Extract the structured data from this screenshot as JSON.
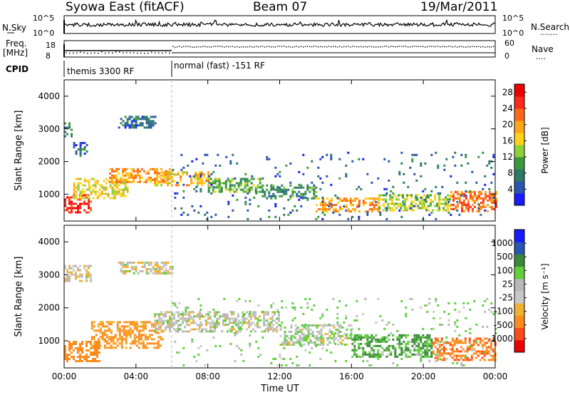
{
  "header": {
    "station": "Syowa East (fitACF)",
    "beam": "Beam 07",
    "date": "19/Mar/2011"
  },
  "side_labels": {
    "nsky": "N.Sky",
    "nsearch": "N.Search",
    "nsearch_dots": "·······",
    "freq": "Freq.",
    "freq_unit": "[MHz]",
    "nave": "Nave",
    "nave_dots": "····",
    "cpid": "CPID",
    "sky_top": "10^5",
    "sky_bot": "10^0",
    "search_top": "10^5",
    "search_bot": "10^0",
    "freq_top": "18",
    "freq_bot": "8",
    "nave_top": "60",
    "nave_bot": "0"
  },
  "cpid_modes": [
    "themis 3300 RF",
    "normal (fast) -151 RF"
  ],
  "colors": {
    "power": [
      "#1a1aff",
      "#2a55b0",
      "#2e7a66",
      "#3b9a3b",
      "#8fcf3a",
      "#ffd21a",
      "#ffa51a",
      "#ff6a1a",
      "#ff2a1a",
      "#ee0000"
    ],
    "velocity": [
      "#ee0000",
      "#ff4a1a",
      "#ff8c1a",
      "#f0b030",
      "#c8c8c8",
      "#b8b8b8",
      "#5fcf3a",
      "#3a8a3a",
      "#2a55b0",
      "#1a1aff"
    ]
  },
  "chart_data": [
    {
      "type": "heatmap",
      "panel": "power",
      "xlabel": "",
      "ylabel": "Slant Range [km]",
      "x_ticks": [
        "00:00",
        "04:00",
        "08:00",
        "12:00",
        "16:00",
        "20:00",
        "00:00"
      ],
      "xlim": [
        0,
        24
      ],
      "ylim": [
        180,
        4500
      ],
      "y_ticks": [
        1000,
        2000,
        3000,
        4000
      ],
      "colorbar": {
        "label": "Power [dB]",
        "ticks": [
          "4",
          "8",
          "12",
          "16",
          "20",
          "24",
          "28"
        ],
        "range": [
          0,
          30
        ]
      },
      "regions": [
        {
          "t0": 0.0,
          "t1": 0.4,
          "r0": 2750,
          "r1": 3200,
          "v": 8
        },
        {
          "t0": 0.5,
          "t1": 1.3,
          "r0": 2200,
          "r1": 2600,
          "v": 6
        },
        {
          "t0": 3.0,
          "t1": 5.2,
          "r0": 3050,
          "r1": 3400,
          "v": 6
        },
        {
          "t0": 0.0,
          "t1": 1.5,
          "r0": 450,
          "r1": 1000,
          "v": 26
        },
        {
          "t0": 0.5,
          "t1": 3.5,
          "r0": 900,
          "r1": 1500,
          "v": 16
        },
        {
          "t0": 2.5,
          "t1": 6.0,
          "r0": 1400,
          "r1": 1800,
          "v": 20
        },
        {
          "t0": 5.0,
          "t1": 8.0,
          "r0": 1300,
          "r1": 1700,
          "v": 18
        },
        {
          "t0": 8.0,
          "t1": 11.0,
          "r0": 1100,
          "r1": 1500,
          "v": 12
        },
        {
          "t0": 11.0,
          "t1": 14.0,
          "r0": 900,
          "r1": 1300,
          "v": 9
        },
        {
          "t0": 14.0,
          "t1": 17.5,
          "r0": 500,
          "r1": 900,
          "v": 20
        },
        {
          "t0": 17.5,
          "t1": 21.5,
          "r0": 500,
          "r1": 1000,
          "v": 14
        },
        {
          "t0": 21.5,
          "t1": 24.0,
          "r0": 500,
          "r1": 1100,
          "v": 22
        },
        {
          "t0": 6.0,
          "t1": 24.0,
          "r0": 250,
          "r1": 2300,
          "v": 6
        }
      ]
    },
    {
      "type": "heatmap",
      "panel": "velocity",
      "xlabel": "Time UT",
      "ylabel": "Slant Range [km]",
      "x_ticks": [
        "00:00",
        "04:00",
        "08:00",
        "12:00",
        "16:00",
        "20:00",
        "00:00"
      ],
      "xlim": [
        0,
        24
      ],
      "ylim": [
        180,
        4500
      ],
      "y_ticks": [
        1000,
        2000,
        3000,
        4000
      ],
      "colorbar": {
        "label": "Velocity [m s⁻¹]",
        "ticks": [
          "1000",
          "500",
          "100",
          "25",
          "-25",
          "-100",
          "-500",
          "-1000"
        ]
      },
      "regions": [
        {
          "t0": 0.0,
          "t1": 1.5,
          "r0": 2800,
          "r1": 3300,
          "v": -20
        },
        {
          "t0": 3.0,
          "t1": 6.0,
          "r0": 3050,
          "r1": 3400,
          "v": -10
        },
        {
          "t0": 0.0,
          "t1": 2.0,
          "r0": 400,
          "r1": 1000,
          "v": -300
        },
        {
          "t0": 1.5,
          "t1": 5.5,
          "r0": 800,
          "r1": 1600,
          "v": -150
        },
        {
          "t0": 5.0,
          "t1": 12.0,
          "r0": 1300,
          "r1": 1900,
          "v": 0
        },
        {
          "t0": 12.0,
          "t1": 16.0,
          "r0": 900,
          "r1": 1500,
          "v": 10
        },
        {
          "t0": 16.0,
          "t1": 20.5,
          "r0": 500,
          "r1": 1200,
          "v": 120
        },
        {
          "t0": 20.5,
          "t1": 24.0,
          "r0": 400,
          "r1": 1100,
          "v": -400
        },
        {
          "t0": 6.0,
          "t1": 24.0,
          "r0": 250,
          "r1": 2300,
          "v": 40
        }
      ]
    }
  ]
}
